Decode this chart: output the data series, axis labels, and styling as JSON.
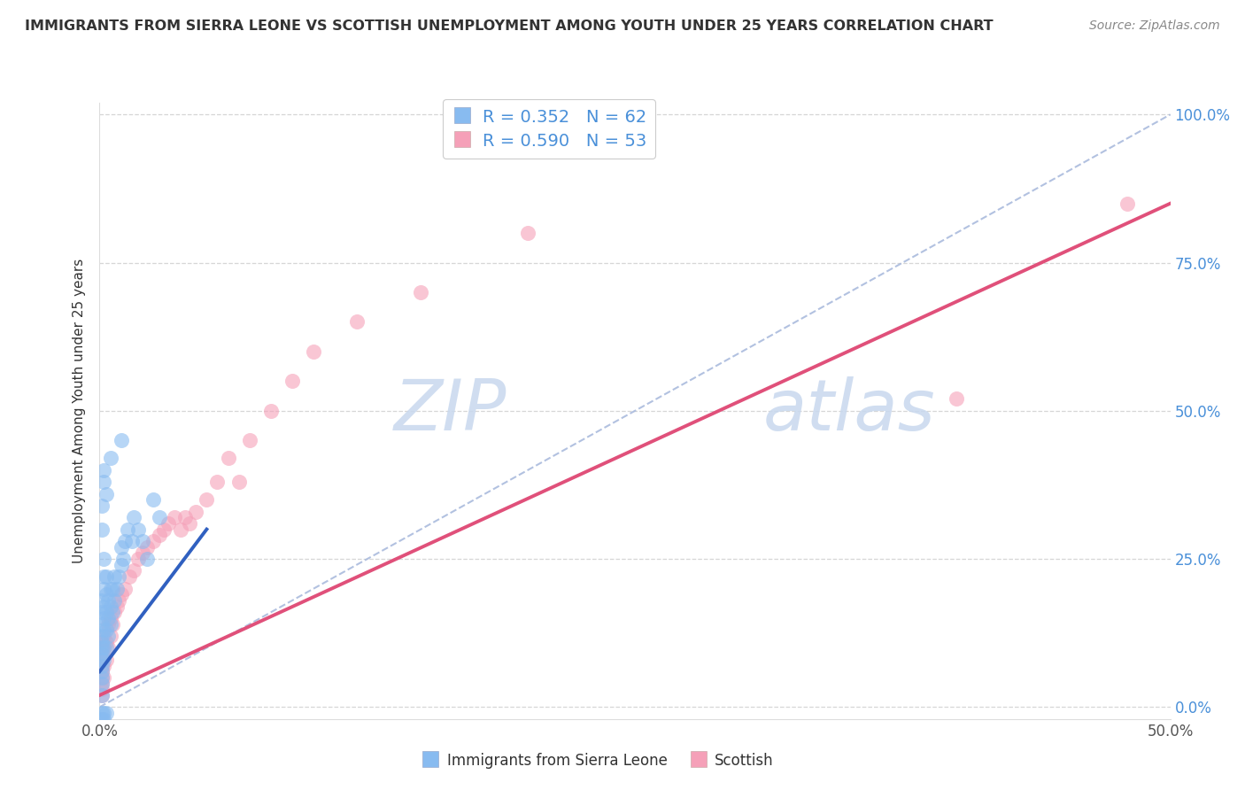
{
  "title": "IMMIGRANTS FROM SIERRA LEONE VS SCOTTISH UNEMPLOYMENT AMONG YOUTH UNDER 25 YEARS CORRELATION CHART",
  "source": "Source: ZipAtlas.com",
  "ylabel": "Unemployment Among Youth under 25 years",
  "xlim": [
    0.0,
    0.5
  ],
  "ylim": [
    -0.02,
    1.02
  ],
  "legend1_label": "Immigrants from Sierra Leone",
  "legend2_label": "Scottish",
  "R1": 0.352,
  "N1": 62,
  "R2": 0.59,
  "N2": 53,
  "color_blue": "#88bbf0",
  "color_pink": "#f5a0b8",
  "color_pink_line": "#e0507a",
  "color_blue_line": "#3060c0",
  "color_ref_line": "#aabbdd",
  "watermark_color": "#d0dcf0",
  "background": "#ffffff",
  "blue_scatter_x": [
    0.001,
    0.001,
    0.001,
    0.001,
    0.001,
    0.001,
    0.001,
    0.001,
    0.001,
    0.001,
    0.001,
    0.001,
    0.001,
    0.002,
    0.002,
    0.002,
    0.002,
    0.002,
    0.002,
    0.002,
    0.002,
    0.003,
    0.003,
    0.003,
    0.003,
    0.003,
    0.004,
    0.004,
    0.004,
    0.005,
    0.005,
    0.005,
    0.006,
    0.006,
    0.007,
    0.007,
    0.008,
    0.009,
    0.01,
    0.01,
    0.011,
    0.012,
    0.013,
    0.015,
    0.016,
    0.018,
    0.02,
    0.022,
    0.025,
    0.028,
    0.01,
    0.005,
    0.003,
    0.002,
    0.001,
    0.002,
    0.001,
    0.001,
    0.003,
    0.002,
    0.001,
    0.002
  ],
  "blue_scatter_y": [
    0.02,
    0.04,
    0.06,
    0.08,
    0.1,
    0.12,
    0.14,
    0.16,
    0.18,
    0.05,
    0.07,
    0.09,
    0.11,
    0.08,
    0.1,
    0.13,
    0.15,
    0.17,
    0.2,
    0.22,
    0.25,
    0.1,
    0.13,
    0.16,
    0.19,
    0.22,
    0.12,
    0.15,
    0.18,
    0.14,
    0.17,
    0.2,
    0.16,
    0.2,
    0.18,
    0.22,
    0.2,
    0.22,
    0.24,
    0.27,
    0.25,
    0.28,
    0.3,
    0.28,
    0.32,
    0.3,
    0.28,
    0.25,
    0.35,
    0.32,
    0.45,
    0.42,
    -0.01,
    -0.01,
    -0.01,
    0.38,
    0.3,
    0.34,
    0.36,
    0.4,
    -0.02,
    -0.02
  ],
  "pink_scatter_x": [
    0.001,
    0.001,
    0.001,
    0.001,
    0.001,
    0.001,
    0.001,
    0.001,
    0.001,
    0.001,
    0.002,
    0.002,
    0.002,
    0.002,
    0.003,
    0.003,
    0.004,
    0.004,
    0.005,
    0.005,
    0.006,
    0.007,
    0.008,
    0.009,
    0.01,
    0.012,
    0.014,
    0.016,
    0.018,
    0.02,
    0.022,
    0.025,
    0.028,
    0.03,
    0.032,
    0.035,
    0.038,
    0.04,
    0.042,
    0.045,
    0.05,
    0.055,
    0.06,
    0.065,
    0.07,
    0.08,
    0.09,
    0.1,
    0.12,
    0.15,
    0.2,
    0.4,
    0.48
  ],
  "pink_scatter_y": [
    0.02,
    0.03,
    0.04,
    0.05,
    0.06,
    0.07,
    0.08,
    0.09,
    0.1,
    0.11,
    0.05,
    0.07,
    0.1,
    0.12,
    0.08,
    0.11,
    0.1,
    0.14,
    0.12,
    0.15,
    0.14,
    0.16,
    0.17,
    0.18,
    0.19,
    0.2,
    0.22,
    0.23,
    0.25,
    0.26,
    0.27,
    0.28,
    0.29,
    0.3,
    0.31,
    0.32,
    0.3,
    0.32,
    0.31,
    0.33,
    0.35,
    0.38,
    0.42,
    0.38,
    0.45,
    0.5,
    0.55,
    0.6,
    0.65,
    0.7,
    0.8,
    0.52,
    0.85
  ],
  "blue_line_x": [
    0.0,
    0.05
  ],
  "blue_line_y": [
    0.06,
    0.3
  ],
  "pink_line_x": [
    0.0,
    0.5
  ],
  "pink_line_y": [
    0.02,
    0.85
  ],
  "ref_line_x": [
    0.0,
    0.5
  ],
  "ref_line_y": [
    0.0,
    1.0
  ],
  "ytick_positions": [
    0.0,
    0.25,
    0.5,
    0.75,
    1.0
  ],
  "ytick_labels": [
    "0.0%",
    "25.0%",
    "50.0%",
    "75.0%",
    "100.0%"
  ],
  "xtick_positions": [
    0.0,
    0.5
  ],
  "xtick_labels": [
    "0.0%",
    "50.0%"
  ],
  "stat_color": "#4a90d9",
  "tick_color": "#4a90d9"
}
